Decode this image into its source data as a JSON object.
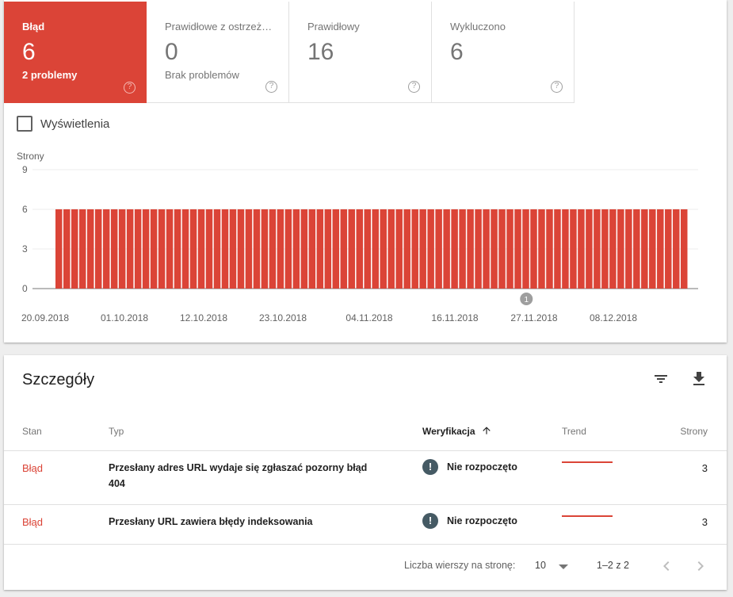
{
  "tiles": [
    {
      "label": "Błąd",
      "value": "6",
      "sub": "2 problemy",
      "help": "?"
    },
    {
      "label": "Prawidłowe z ostrzeż…",
      "value": "0",
      "sub": "Brak problemów",
      "help": "?"
    },
    {
      "label": "Prawidłowy",
      "value": "16",
      "sub": "",
      "help": "?"
    },
    {
      "label": "Wykluczono",
      "value": "6",
      "sub": "",
      "help": "?"
    }
  ],
  "views_label": "Wyświetlenia",
  "chart_data": {
    "type": "bar",
    "ylabel": "Strony",
    "ylim": [
      0,
      9
    ],
    "yticks": [
      0,
      3,
      6,
      9
    ],
    "x_tick_labels": [
      "20.09.2018",
      "01.10.2018",
      "12.10.2018",
      "23.10.2018",
      "04.11.2018",
      "16.11.2018",
      "27.11.2018",
      "08.12.2018"
    ],
    "series": [
      {
        "color": "#db4437",
        "values": [
          6,
          6,
          6,
          6,
          6,
          6,
          6,
          6,
          6,
          6,
          6,
          6,
          6,
          6,
          6,
          6,
          6,
          6,
          6,
          6,
          6,
          6,
          6,
          6,
          6,
          6,
          6,
          6,
          6,
          6,
          6,
          6,
          6,
          6,
          6,
          6,
          6,
          6,
          6,
          6,
          6,
          6,
          6,
          6,
          6,
          6,
          6,
          6,
          6,
          6,
          6,
          6,
          6,
          6,
          6,
          6,
          6,
          6,
          6,
          6,
          6,
          6,
          6,
          6,
          6,
          6,
          6,
          6,
          6,
          6,
          6,
          6,
          6,
          6,
          6,
          6,
          6,
          6,
          6,
          6
        ]
      }
    ],
    "annotation": {
      "label": "1",
      "at_category": 59
    }
  },
  "details": {
    "title": "Szczegóły",
    "columns": {
      "stan": "Stan",
      "typ": "Typ",
      "weryfikacja": "Weryfikacja",
      "trend": "Trend",
      "strony": "Strony"
    },
    "rows": [
      {
        "stan": "Błąd",
        "typ": "Przesłany adres URL wydaje się zgłaszać pozorny błąd 404",
        "weryfikacja": "Nie rozpoczęto",
        "strony": "3"
      },
      {
        "stan": "Błąd",
        "typ": "Przesłany URL zawiera błędy indeksowania",
        "weryfikacja": "Nie rozpoczęto",
        "strony": "3"
      }
    ]
  },
  "pager": {
    "rows_label": "Liczba wierszy na stronę:",
    "rows_value": "10",
    "range": "1–2 z 2"
  },
  "colors": {
    "error": "#db4437",
    "status_icon": "#455a64"
  }
}
